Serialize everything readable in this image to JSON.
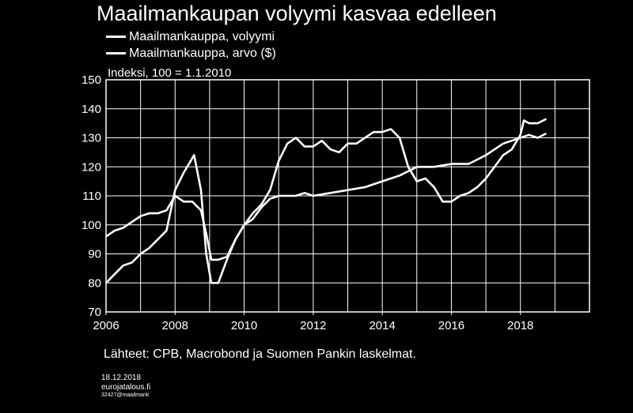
{
  "title": "Maailmankaupan volyymi kasvaa edelleen",
  "legend": [
    {
      "label": "Maailmankauppa, volyymi"
    },
    {
      "label": "Maailmankauppa, arvo ($)"
    }
  ],
  "source": "Lähteet: CPB, Macrobond ja Suomen Pankin laskelmat.",
  "footer": {
    "date": "18.12.2018",
    "site": "eurojatalous.fi",
    "code": "32427@maailmank"
  },
  "colors": {
    "background": "#000000",
    "line": "#ffffff",
    "axes": "#ffffff"
  },
  "chart_data": {
    "type": "line",
    "title": "Maailmankaupan volyymi kasvaa edelleen",
    "annotation": "Indeksi, 100 = 1.1.2010",
    "xlim": [
      2006,
      2020
    ],
    "ylim": [
      70,
      150
    ],
    "xticks": [
      2006,
      2008,
      2010,
      2012,
      2014,
      2016,
      2018
    ],
    "yticks": [
      70,
      80,
      90,
      100,
      110,
      120,
      130,
      140,
      150
    ],
    "grid": true,
    "series": [
      {
        "name": "Maailmankauppa, volyymi",
        "x": [
          2006.0,
          2006.25,
          2006.5,
          2006.75,
          2007.0,
          2007.25,
          2007.5,
          2007.75,
          2008.0,
          2008.25,
          2008.5,
          2008.75,
          2008.9,
          2009.05,
          2009.25,
          2009.5,
          2009.75,
          2010.0,
          2010.25,
          2010.5,
          2010.75,
          2011.0,
          2011.25,
          2011.5,
          2011.75,
          2012.0,
          2012.5,
          2013.0,
          2013.5,
          2014.0,
          2014.5,
          2015.0,
          2015.5,
          2016.0,
          2016.5,
          2017.0,
          2017.5,
          2017.75,
          2018.0,
          2018.25,
          2018.5,
          2018.75
        ],
        "values": [
          96,
          98,
          99,
          101,
          103,
          104,
          104,
          105,
          110,
          108,
          108,
          105,
          97,
          88,
          88,
          89,
          95,
          100,
          102,
          106,
          109,
          110,
          110,
          110,
          111,
          110,
          111,
          112,
          113,
          115,
          117,
          120,
          120,
          121,
          121,
          124,
          128,
          129,
          130,
          131,
          130,
          131.5
        ]
      },
      {
        "name": "Maailmankauppa, arvo ($)",
        "x": [
          2006.0,
          2006.25,
          2006.5,
          2006.75,
          2007.0,
          2007.25,
          2007.5,
          2007.75,
          2008.0,
          2008.25,
          2008.4,
          2008.55,
          2008.75,
          2008.9,
          2009.05,
          2009.25,
          2009.5,
          2009.75,
          2010.0,
          2010.25,
          2010.5,
          2010.75,
          2011.0,
          2011.25,
          2011.5,
          2011.75,
          2012.0,
          2012.25,
          2012.5,
          2012.75,
          2013.0,
          2013.25,
          2013.5,
          2013.75,
          2014.0,
          2014.25,
          2014.5,
          2014.75,
          2015.0,
          2015.25,
          2015.5,
          2015.75,
          2016.0,
          2016.25,
          2016.5,
          2016.75,
          2017.0,
          2017.25,
          2017.5,
          2017.75,
          2018.0,
          2018.1,
          2018.25,
          2018.5,
          2018.75
        ],
        "values": [
          80,
          83,
          86,
          87,
          90,
          92,
          95,
          98,
          112,
          118,
          121,
          124,
          112,
          90,
          80,
          80,
          88,
          95,
          100,
          104,
          107,
          112,
          122,
          128,
          130,
          127,
          127,
          129,
          126,
          125,
          128,
          128,
          130,
          132,
          132,
          133,
          130,
          120,
          115,
          116,
          113,
          108,
          108,
          110,
          111,
          113,
          116,
          120,
          124,
          126,
          131,
          136,
          135,
          135,
          136.5
        ]
      }
    ]
  }
}
